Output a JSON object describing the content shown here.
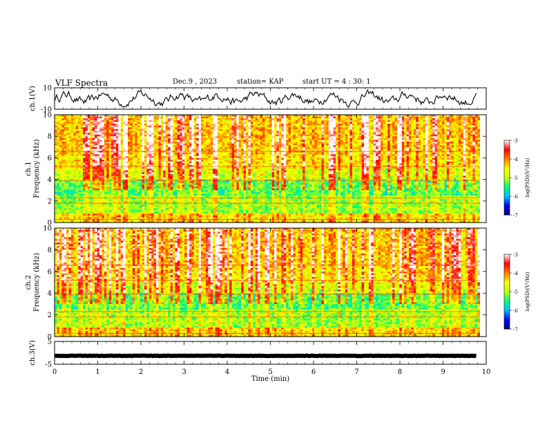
{
  "header": {
    "title": "VLF Spectra",
    "date": "Dec.9 , 2023",
    "station": "station= KAP",
    "start": "start UT = 4 : 30: 1"
  },
  "chart_data": [
    {
      "type": "line",
      "ylabel": "ch.1(V)",
      "ylim": [
        -10,
        10
      ],
      "yticks": [
        "10",
        "-10"
      ],
      "xlim": [
        0,
        10
      ],
      "series": [
        {
          "values": []
        }
      ]
    },
    {
      "type": "heatmap",
      "ylabel": "ch.1 Frequency (kHz)",
      "ylim": [
        0,
        10
      ],
      "yticks": [
        "0",
        "2",
        "4",
        "6",
        "8",
        "10"
      ],
      "xlim": [
        0,
        10
      ],
      "colorbar": {
        "label": "log(PSD)(V²/Hz)",
        "range": [
          -7,
          -3
        ],
        "ticks": [
          "-3",
          "-4",
          "-5",
          "-6",
          "-7"
        ]
      }
    },
    {
      "type": "heatmap",
      "ylabel": "ch.2 Frequency (kHz)",
      "ylim": [
        0,
        10
      ],
      "yticks": [
        "0",
        "2",
        "4",
        "6",
        "8",
        "10"
      ],
      "xlim": [
        0,
        10
      ],
      "colorbar": {
        "label": "log(PSD)(V²/Hz)",
        "range": [
          -7,
          -3
        ],
        "ticks": [
          "-3",
          "-4",
          "-5",
          "-6",
          "-7"
        ]
      }
    },
    {
      "type": "line",
      "ylabel": "ch.3(V)",
      "ylim": [
        -5,
        5
      ],
      "yticks": [
        "5",
        "-5"
      ],
      "xlim": [
        0,
        10
      ],
      "xlabel": "Time (min)",
      "xticks": [
        "0",
        "1",
        "2",
        "3",
        "4",
        "5",
        "6",
        "7",
        "8",
        "9",
        "10"
      ],
      "series": [
        {
          "values": []
        }
      ]
    }
  ],
  "colors": {
    "colormap": [
      "#000080",
      "#0000ff",
      "#00c0ff",
      "#00ff80",
      "#c8ff00",
      "#ffff00",
      "#ff8000",
      "#ff0000",
      "#ffffff"
    ]
  }
}
